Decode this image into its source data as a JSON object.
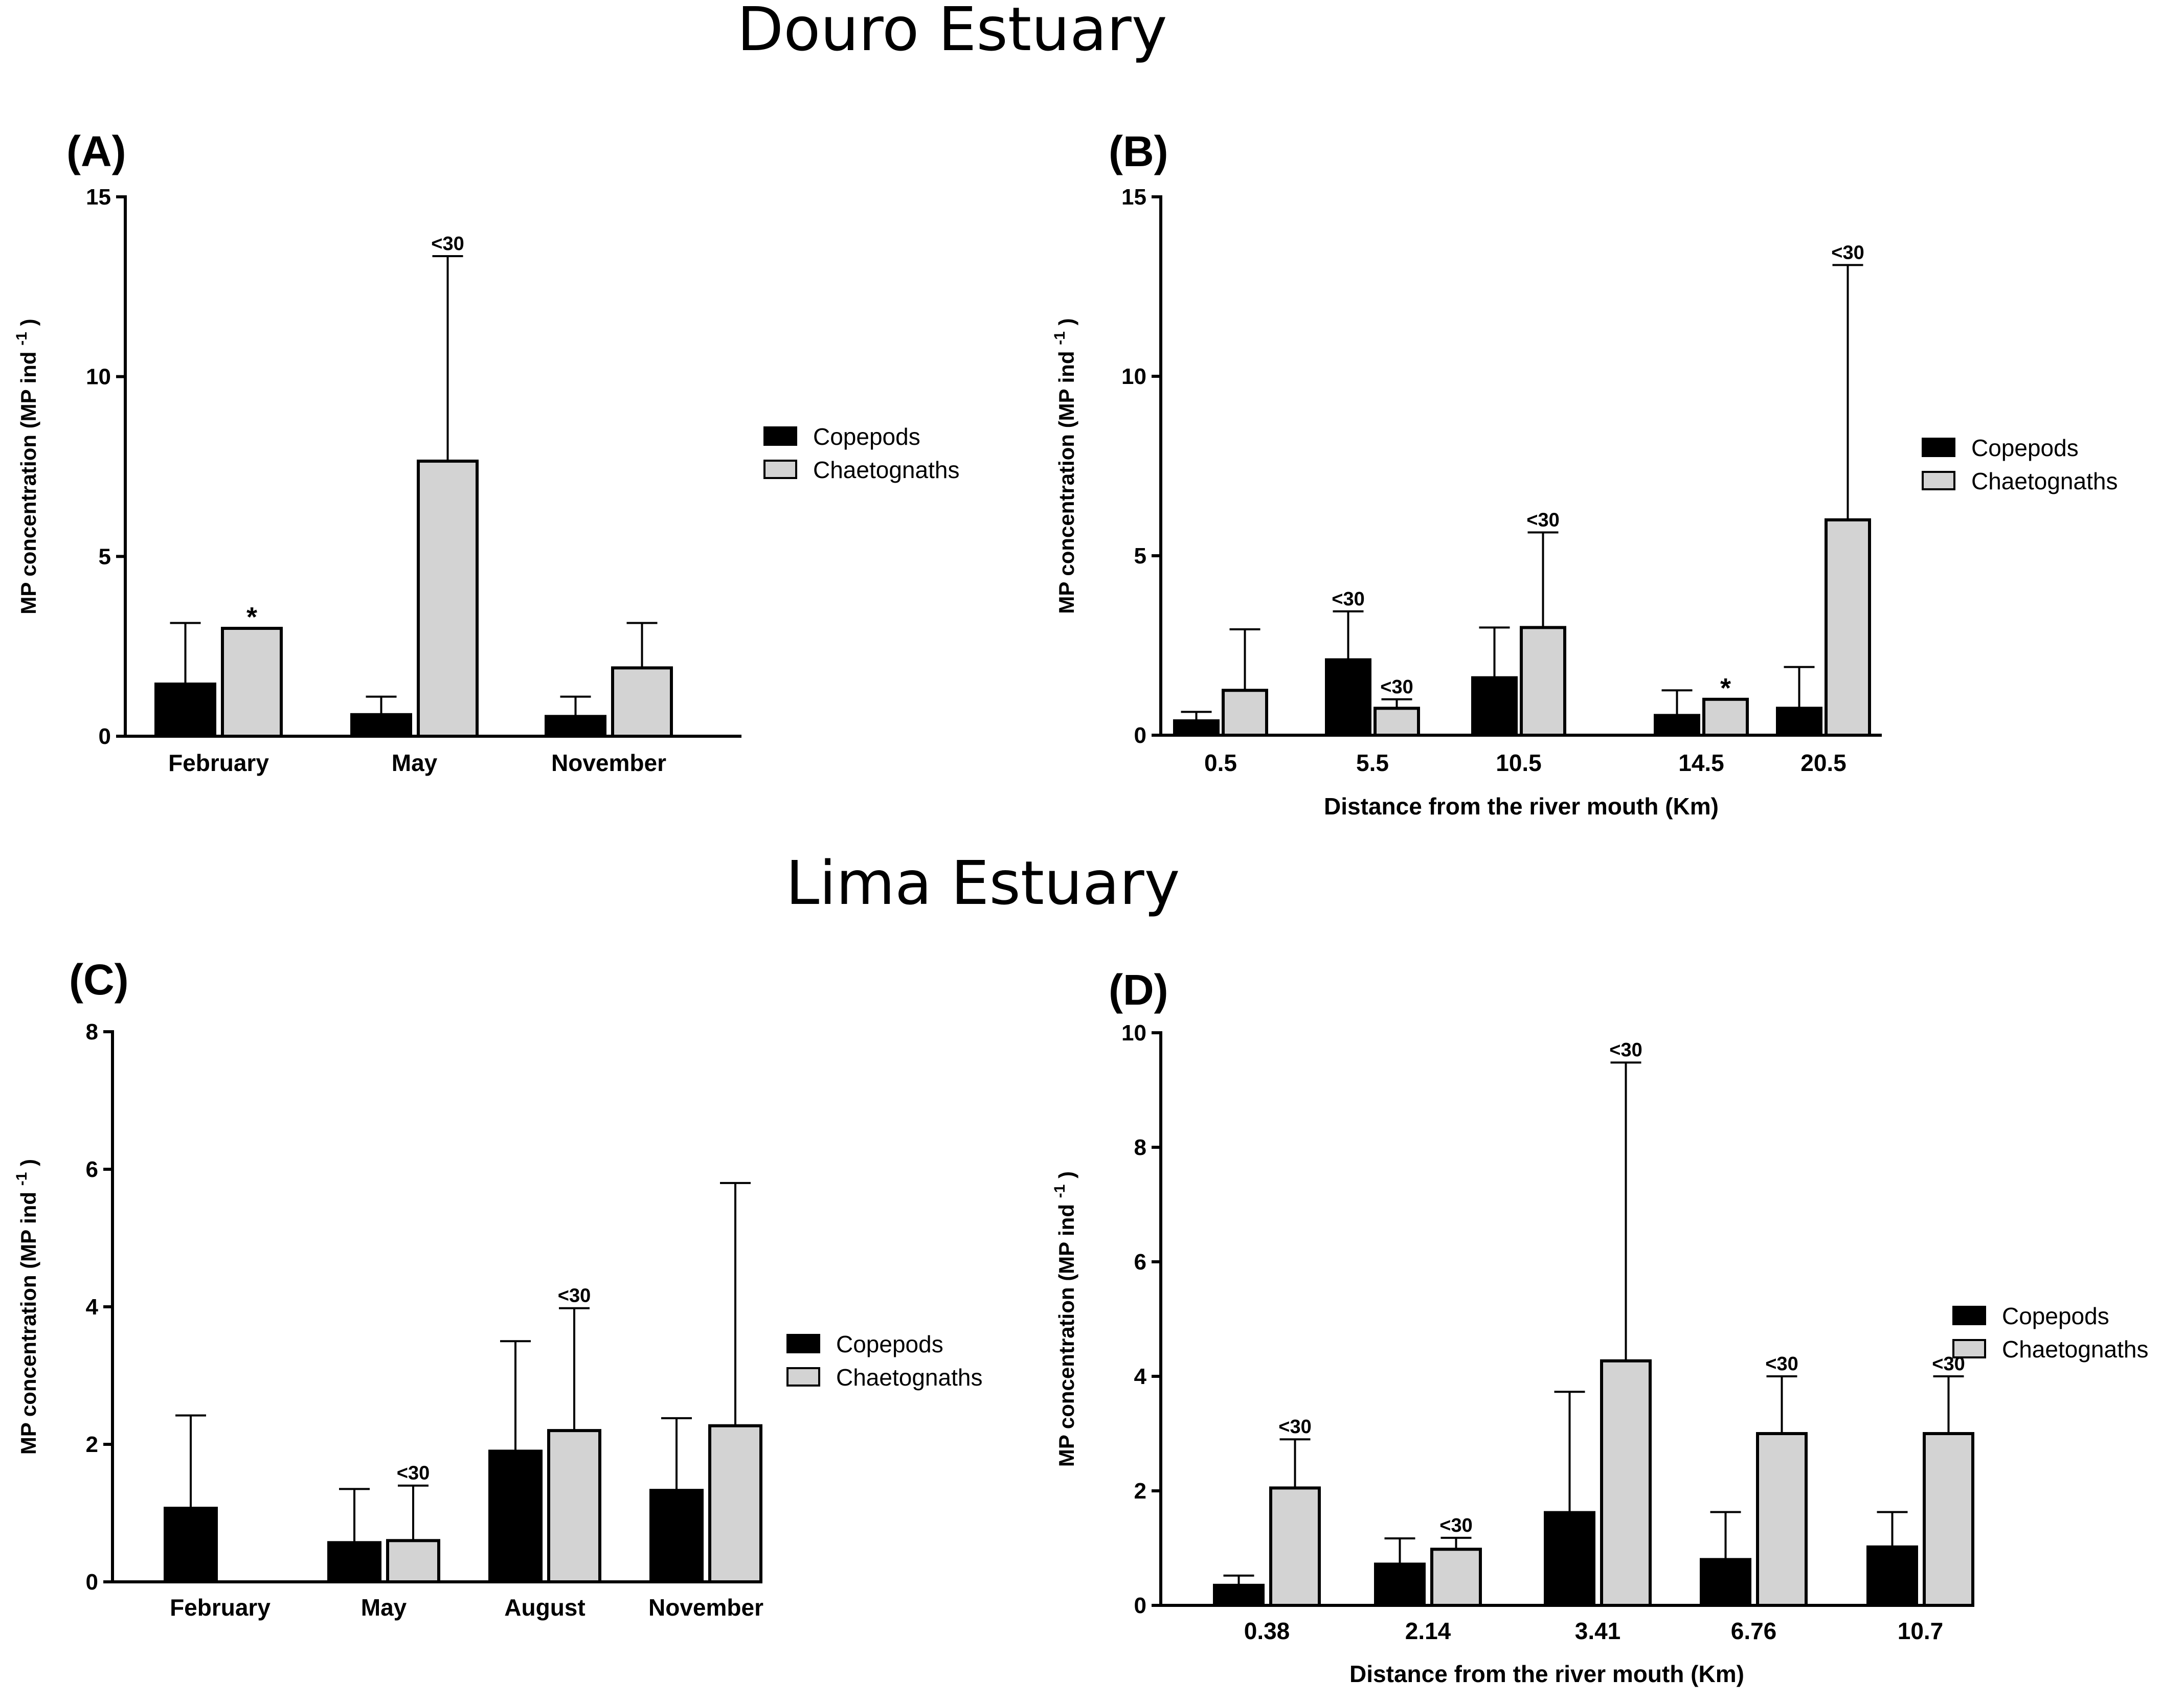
{
  "colors": {
    "copepods": "#000000",
    "chaetognaths": "#d3d3d3"
  },
  "titles": {
    "douro": "Douro Estuary",
    "lima": "Lima Estuary"
  },
  "chart_data": [
    {
      "panel": "(A)",
      "type": "bar",
      "categories": [
        "February",
        "May",
        "November"
      ],
      "series": [
        {
          "name": "Copepods",
          "values": [
            1.45,
            0.6,
            0.55
          ],
          "errors": [
            3.15,
            1.1,
            1.1
          ]
        },
        {
          "name": "Chaetognaths",
          "values": [
            3.0,
            7.65,
            1.9
          ],
          "errors": [
            null,
            13.35,
            3.15
          ]
        }
      ],
      "annotations": [
        {
          "series": 1,
          "index": 0,
          "text": "*"
        },
        {
          "series": 1,
          "index": 1,
          "text": "<30"
        }
      ],
      "title": "",
      "xlabel": "",
      "ylabel": "MP concentration (MP ind",
      "ylabel_sup": "-1",
      "ylabel_end": ")",
      "ylim": [
        0,
        15
      ],
      "yticks": [
        0,
        5,
        10,
        15
      ],
      "legend": [
        "Copepods",
        "Chaetognaths"
      ],
      "legend_position": "right"
    },
    {
      "panel": "(B)",
      "type": "bar",
      "categories": [
        "0.5",
        "5.5",
        "10.5",
        "14.5",
        "20.5"
      ],
      "series": [
        {
          "name": "Copepods",
          "values": [
            0.4,
            2.1,
            1.6,
            0.55,
            0.75
          ],
          "errors": [
            0.65,
            3.45,
            3.0,
            1.25,
            1.9
          ]
        },
        {
          "name": "Chaetognaths",
          "values": [
            1.25,
            0.75,
            3.0,
            1.0,
            6.0
          ],
          "errors": [
            2.95,
            1.0,
            5.65,
            null,
            13.1
          ]
        }
      ],
      "annotations": [
        {
          "series": 0,
          "index": 1,
          "text": "<30"
        },
        {
          "series": 1,
          "index": 1,
          "text": "<30"
        },
        {
          "series": 1,
          "index": 2,
          "text": "<30"
        },
        {
          "series": 1,
          "index": 3,
          "text": "*"
        },
        {
          "series": 1,
          "index": 4,
          "text": "<30"
        }
      ],
      "title": "",
      "xlabel": "Distance from the river mouth (Km)",
      "ylabel": "MP concentration (MP ind",
      "ylabel_sup": "-1",
      "ylabel_end": ")",
      "ylim": [
        0,
        15
      ],
      "yticks": [
        0,
        5,
        10,
        15
      ],
      "legend": [
        "Copepods",
        "Chaetognaths"
      ],
      "legend_position": "right"
    },
    {
      "panel": "(C)",
      "type": "bar",
      "categories": [
        "February",
        "May",
        "August",
        "November"
      ],
      "series": [
        {
          "name": "Copepods",
          "values": [
            1.07,
            0.57,
            1.9,
            1.33
          ],
          "errors": [
            2.42,
            1.35,
            3.5,
            2.38
          ]
        },
        {
          "name": "Chaetognaths",
          "values": [
            0,
            0.6,
            2.2,
            2.27
          ],
          "errors": [
            null,
            1.4,
            3.98,
            5.8
          ]
        }
      ],
      "annotations": [
        {
          "series": 1,
          "index": 1,
          "text": "<30"
        },
        {
          "series": 1,
          "index": 2,
          "text": "<30"
        }
      ],
      "title": "",
      "xlabel": "",
      "ylabel": "MP concentration (MP ind",
      "ylabel_sup": "-1",
      "ylabel_end": ")",
      "ylim": [
        0,
        8
      ],
      "yticks": [
        0,
        2,
        4,
        6,
        8
      ],
      "legend": [
        "Copepods",
        "Chaetognaths"
      ],
      "legend_position": "right"
    },
    {
      "panel": "(D)",
      "type": "bar",
      "categories": [
        "0.38",
        "2.14",
        "3.41",
        "6.76",
        "10.7"
      ],
      "series": [
        {
          "name": "Copepods",
          "values": [
            0.35,
            0.72,
            1.62,
            0.8,
            1.02
          ],
          "errors": [
            0.52,
            1.17,
            3.73,
            1.63,
            1.63
          ]
        },
        {
          "name": "Chaetognaths",
          "values": [
            2.05,
            0.98,
            4.27,
            3.0,
            3.0
          ],
          "errors": [
            2.9,
            1.18,
            9.48,
            4.0,
            4.0
          ]
        }
      ],
      "annotations": [
        {
          "series": 1,
          "index": 0,
          "text": "<30"
        },
        {
          "series": 1,
          "index": 1,
          "text": "<30"
        },
        {
          "series": 1,
          "index": 2,
          "text": "<30"
        },
        {
          "series": 1,
          "index": 3,
          "text": "<30"
        },
        {
          "series": 1,
          "index": 4,
          "text": "<30"
        }
      ],
      "title": "",
      "xlabel": "Distance from the river mouth (Km)",
      "ylabel": "MP concentration (MP ind",
      "ylabel_sup": "-1",
      "ylabel_end": ")",
      "ylim": [
        0,
        10
      ],
      "yticks": [
        0,
        2,
        4,
        6,
        8,
        10
      ],
      "legend": [
        "Copepods",
        "Chaetognaths"
      ],
      "legend_position": "right"
    }
  ]
}
